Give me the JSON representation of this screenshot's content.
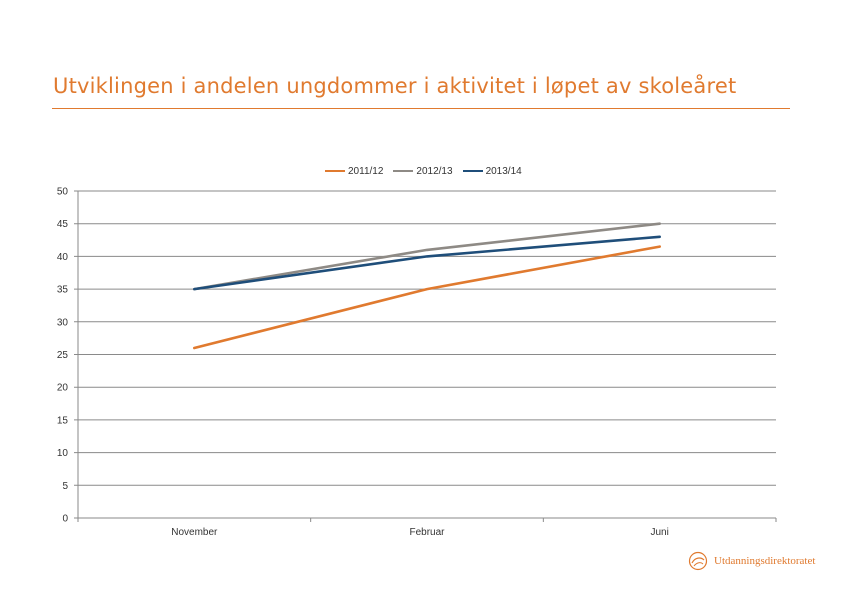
{
  "page": {
    "title": "Utviklingen i andelen ungdommer i aktivitet i løpet av skoleåret",
    "accent_color": "#e07a2f"
  },
  "footer": {
    "logo_text": "Utdanningsdirektoratet",
    "logo_icon": "udir-logo-icon"
  },
  "chart_data": {
    "type": "line",
    "title": "",
    "xlabel": "",
    "ylabel": "",
    "categories": [
      "November",
      "Februar",
      "Juni"
    ],
    "series": [
      {
        "name": "2011/12",
        "color": "#e07a2f",
        "values": [
          26,
          35,
          41.5
        ]
      },
      {
        "name": "2012/13",
        "color": "#8e8a85",
        "values": [
          35,
          41,
          45
        ]
      },
      {
        "name": "2013/14",
        "color": "#1f4e7a",
        "values": [
          35,
          40,
          43
        ]
      }
    ],
    "yticks": [
      "0",
      "5",
      "10",
      "15",
      "20",
      "25",
      "30",
      "35",
      "40",
      "45",
      "50"
    ],
    "ylim": [
      0,
      50
    ],
    "grid": true,
    "legend_position": "top-center"
  }
}
